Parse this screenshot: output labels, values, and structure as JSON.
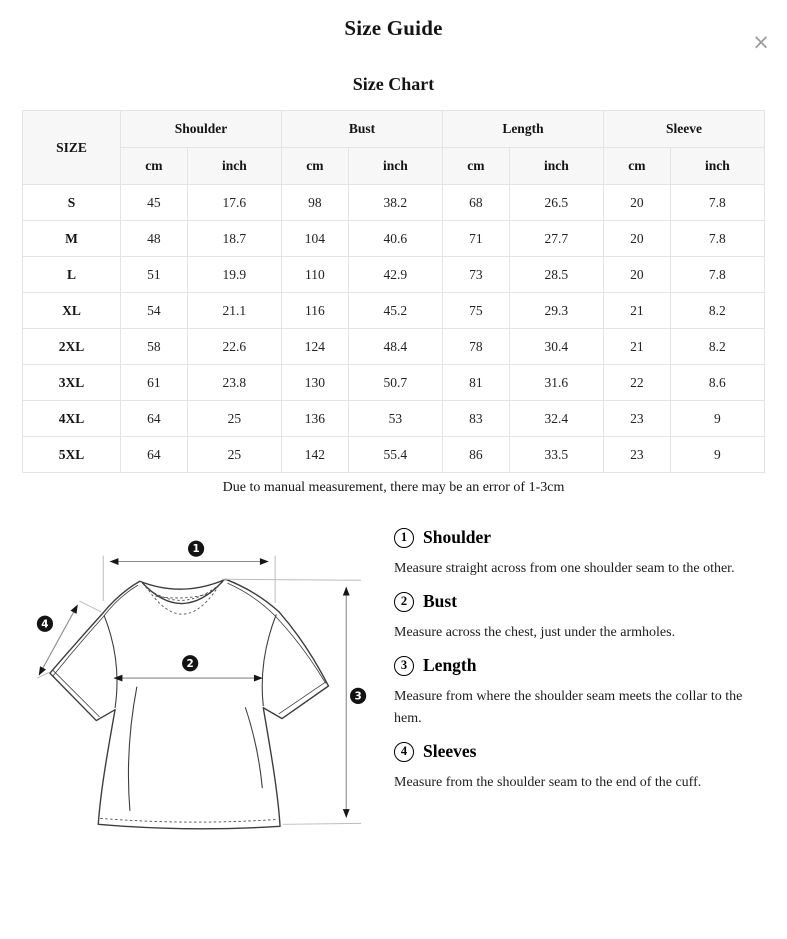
{
  "page": {
    "title": "Size Guide",
    "subtitle": "Size Chart",
    "close_glyph": "×"
  },
  "table": {
    "corner_header": "SIZE",
    "group_headers": [
      "Shoulder",
      "Bust",
      "Length",
      "Sleeve"
    ],
    "unit_headers": [
      "cm",
      "inch"
    ],
    "rows": [
      {
        "size": "S",
        "values": [
          "45",
          "17.6",
          "98",
          "38.2",
          "68",
          "26.5",
          "20",
          "7.8"
        ]
      },
      {
        "size": "M",
        "values": [
          "48",
          "18.7",
          "104",
          "40.6",
          "71",
          "27.7",
          "20",
          "7.8"
        ]
      },
      {
        "size": "L",
        "values": [
          "51",
          "19.9",
          "110",
          "42.9",
          "73",
          "28.5",
          "20",
          "7.8"
        ]
      },
      {
        "size": "XL",
        "values": [
          "54",
          "21.1",
          "116",
          "45.2",
          "75",
          "29.3",
          "21",
          "8.2"
        ]
      },
      {
        "size": "2XL",
        "values": [
          "58",
          "22.6",
          "124",
          "48.4",
          "78",
          "30.4",
          "21",
          "8.2"
        ]
      },
      {
        "size": "3XL",
        "values": [
          "61",
          "23.8",
          "130",
          "50.7",
          "81",
          "31.6",
          "22",
          "8.6"
        ]
      },
      {
        "size": "4XL",
        "values": [
          "64",
          "25",
          "136",
          "53",
          "83",
          "32.4",
          "23",
          "9"
        ]
      },
      {
        "size": "5XL",
        "values": [
          "64",
          "25",
          "142",
          "55.4",
          "86",
          "33.5",
          "23",
          "9"
        ]
      }
    ],
    "note": "Due to manual measurement, there may be an error of 1-3cm"
  },
  "diagram": {
    "marker_labels": [
      "1",
      "2",
      "3",
      "4"
    ]
  },
  "guide": {
    "items": [
      {
        "num": "1",
        "title": "Shoulder",
        "desc": "Measure straight across from one shoulder seam to the other."
      },
      {
        "num": "2",
        "title": "Bust",
        "desc": "Measure across the chest, just under the armholes."
      },
      {
        "num": "3",
        "title": "Length",
        "desc": "Measure from where the shoulder seam meets the collar to the hem."
      },
      {
        "num": "4",
        "title": "Sleeves",
        "desc": "Measure from the shoulder seam to the end of the cuff."
      }
    ]
  },
  "colors": {
    "header_bg": "#f7f7f7",
    "border": "#e4e4e4",
    "text": "#141414",
    "close": "#9b9b9b",
    "line": "#3c3c3c"
  }
}
